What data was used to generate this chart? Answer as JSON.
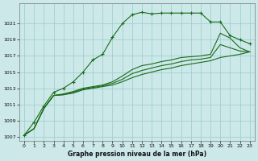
{
  "background_color": "#cce8e8",
  "grid_color": "#99cccc",
  "line_color": "#1a6b1a",
  "title": "Graphe pression niveau de la mer (hPa)",
  "xlim": [
    -0.5,
    23.5
  ],
  "ylim": [
    1006.5,
    1023.5
  ],
  "xticks": [
    0,
    1,
    2,
    3,
    4,
    5,
    6,
    7,
    8,
    9,
    10,
    11,
    12,
    13,
    14,
    15,
    16,
    17,
    18,
    19,
    20,
    21,
    22,
    23
  ],
  "yticks": [
    1007,
    1009,
    1011,
    1013,
    1015,
    1017,
    1019,
    1021
  ],
  "series": [
    {
      "x": [
        0,
        1,
        2,
        3,
        4,
        5,
        6,
        7,
        8,
        9,
        10,
        11,
        12,
        13,
        14,
        15,
        16,
        17,
        18,
        19,
        20,
        21,
        22,
        23
      ],
      "y": [
        1007.2,
        1008.8,
        1010.8,
        1012.5,
        1013.0,
        1013.8,
        1015.0,
        1016.5,
        1017.2,
        1019.3,
        1021.0,
        1022.1,
        1022.4,
        1022.2,
        1022.3,
        1022.3,
        1022.3,
        1022.3,
        1022.3,
        1021.2,
        1021.2,
        1019.5,
        1019.0,
        1018.5
      ],
      "marker": "+"
    },
    {
      "x": [
        0,
        1,
        2,
        3,
        4,
        5,
        6,
        7,
        8,
        9,
        10,
        11,
        12,
        13,
        14,
        15,
        16,
        17,
        18,
        19,
        20,
        21,
        22,
        23
      ],
      "y": [
        1007.2,
        1008.0,
        1010.5,
        1012.1,
        1012.3,
        1012.6,
        1013.0,
        1013.2,
        1013.4,
        1013.8,
        1014.5,
        1015.3,
        1015.8,
        1016.0,
        1016.3,
        1016.5,
        1016.8,
        1016.9,
        1017.0,
        1017.2,
        1019.8,
        1019.2,
        1018.0,
        1017.5
      ],
      "marker": null
    },
    {
      "x": [
        0,
        1,
        2,
        3,
        4,
        5,
        6,
        7,
        8,
        9,
        10,
        11,
        12,
        13,
        14,
        15,
        16,
        17,
        18,
        19,
        20,
        21,
        22,
        23
      ],
      "y": [
        1007.2,
        1008.0,
        1010.5,
        1012.1,
        1012.2,
        1012.5,
        1012.9,
        1013.1,
        1013.3,
        1013.6,
        1014.1,
        1014.8,
        1015.2,
        1015.5,
        1015.8,
        1016.0,
        1016.3,
        1016.5,
        1016.6,
        1016.8,
        1018.4,
        1018.0,
        1017.6,
        1017.5
      ],
      "marker": null
    },
    {
      "x": [
        0,
        1,
        2,
        3,
        4,
        5,
        6,
        7,
        8,
        9,
        10,
        11,
        12,
        13,
        14,
        15,
        16,
        17,
        18,
        19,
        20,
        21,
        22,
        23
      ],
      "y": [
        1007.2,
        1008.0,
        1010.5,
        1012.1,
        1012.2,
        1012.4,
        1012.8,
        1013.0,
        1013.2,
        1013.4,
        1013.8,
        1014.3,
        1014.7,
        1015.0,
        1015.3,
        1015.5,
        1015.8,
        1016.0,
        1016.2,
        1016.4,
        1016.8,
        1017.0,
        1017.2,
        1017.5
      ],
      "marker": null
    }
  ]
}
